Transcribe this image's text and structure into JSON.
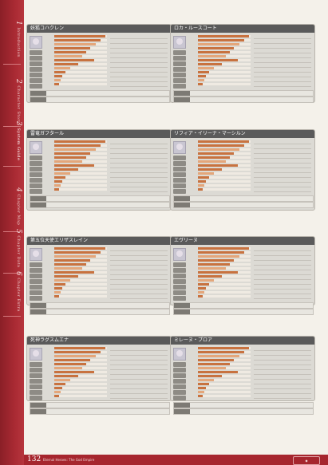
{
  "sidebar": {
    "tabs": [
      {
        "num": "1",
        "label": "Introduction"
      },
      {
        "num": "2",
        "label": "Character Story"
      },
      {
        "num": "3",
        "label": "System Guide"
      },
      {
        "num": "4",
        "label": "Chapter Map"
      },
      {
        "num": "5",
        "label": "Chapter Data"
      },
      {
        "num": "6",
        "label": "Chapter Extra"
      }
    ]
  },
  "cards": [
    {
      "name": "妖狐コハクレン"
    },
    {
      "name": "ロカ・ルースコート"
    },
    {
      "name": "雷竜ガフタール"
    },
    {
      "name": "リフィア・イリーナ・マーシルン"
    },
    {
      "name": "第五位天使エリザスレイン"
    },
    {
      "name": "エヴリーヌ"
    },
    {
      "name": "死神ラグスムエナ"
    },
    {
      "name": "ミレーヌ・プロア"
    }
  ],
  "footer": {
    "page": "132",
    "title": "Eternal Heroes: The God Empire"
  },
  "colors": {
    "accent": "#a6262e",
    "bar": "#c8723f",
    "header": "#5a5a5a"
  }
}
